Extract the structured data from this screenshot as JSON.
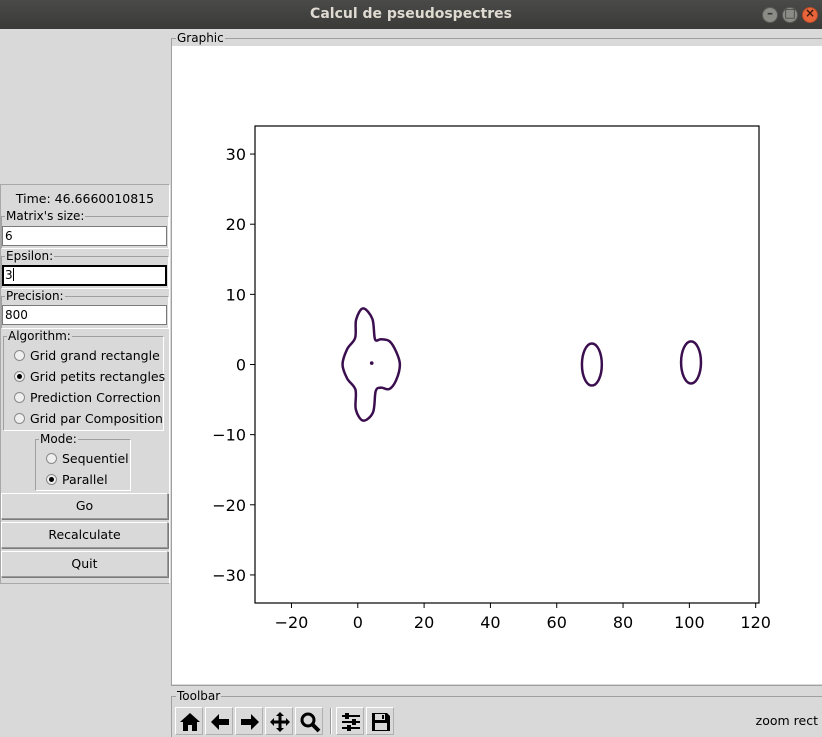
{
  "window": {
    "title": "Calcul de pseudospectres"
  },
  "sidebar": {
    "time_label": "Time: 46.6660010815",
    "matrix_size": {
      "legend": "Matrix's size:",
      "value": "6"
    },
    "epsilon": {
      "legend": "Epsilon:",
      "value": "3"
    },
    "precision": {
      "legend": "Precision:",
      "value": "800"
    },
    "algorithm": {
      "legend": "Algorithm:",
      "options": [
        "Grid grand rectangle",
        "Grid petits rectangles",
        "Prediction Correction",
        "Grid par Composition"
      ],
      "selected": "Grid petits rectangles"
    },
    "mode": {
      "legend": "Mode:",
      "options": [
        "Sequentiel",
        "Parallel"
      ],
      "selected": "Parallel"
    },
    "buttons": {
      "go": "Go",
      "recalculate": "Recalculate",
      "quit": "Quit"
    }
  },
  "graphic": {
    "legend": "Graphic"
  },
  "toolbar": {
    "legend": "Toolbar",
    "icons": [
      "home-icon",
      "back-arrow-icon",
      "forward-arrow-icon",
      "pan-icon",
      "zoom-icon",
      "subplots-config-icon",
      "save-icon"
    ],
    "status": "zoom rect"
  },
  "chart_data": {
    "type": "line",
    "title": "",
    "xlabel": "",
    "ylabel": "",
    "xlim": [
      -31,
      121
    ],
    "ylim": [
      -34,
      34
    ],
    "xticks": [
      -20,
      0,
      20,
      40,
      60,
      80,
      100,
      120
    ],
    "yticks": [
      30,
      20,
      10,
      0,
      -10,
      -20,
      -30
    ],
    "xtick_labels": [
      "−20",
      "0",
      "20",
      "40",
      "60",
      "80",
      "100",
      "120"
    ],
    "ytick_labels": [
      "30",
      "20",
      "10",
      "0",
      "−10",
      "−20",
      "−30"
    ],
    "grid": false,
    "line_color": "#3b0f4f",
    "contours": [
      {
        "shape": "four-lobed",
        "center": [
          3.9,
          0
        ],
        "lobes": [
          {
            "center": [
              1.5,
              0.5
            ],
            "rx": 4.5,
            "ry": 7.5
          },
          {
            "center": [
              9.5,
              0
            ],
            "rx": 4.0,
            "ry": 3.5
          },
          {
            "center": [
              0,
              0
            ],
            "rx": 4.8,
            "ry": 4.0
          }
        ]
      },
      {
        "shape": "point",
        "center": [
          4.2,
          0.2
        ]
      },
      {
        "shape": "ellipse",
        "center": [
          70.6,
          0
        ],
        "rx": 3.0,
        "ry": 3.0
      },
      {
        "shape": "ellipse",
        "center": [
          100.5,
          0.3
        ],
        "rx": 3.0,
        "ry": 3.0
      }
    ]
  }
}
